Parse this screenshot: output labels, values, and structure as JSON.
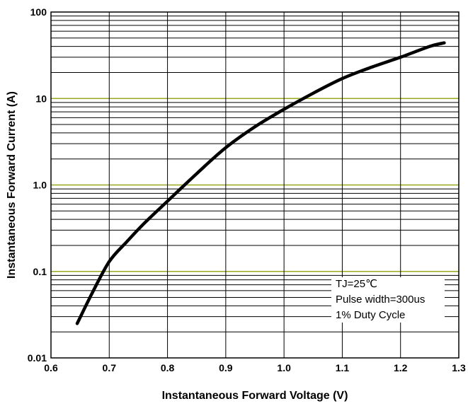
{
  "chart_data": {
    "type": "line",
    "title": "",
    "xlabel": "Instantaneous Forward Voltage (V)",
    "ylabel": "Instantaneous Forward Current (A)",
    "xlim": [
      0.6,
      1.3
    ],
    "ylim": [
      0.01,
      100
    ],
    "y_scale": "log",
    "grid": true,
    "x_ticks": [
      "0.6",
      "0.7",
      "0.8",
      "0.9",
      "1.0",
      "1.1",
      "1.2",
      "1.3"
    ],
    "y_ticks": [
      "0.01",
      "0.1",
      "1.0",
      "10",
      "100"
    ],
    "series": [
      {
        "x": [
          0.645,
          0.67,
          0.7,
          0.73,
          0.76,
          0.8,
          0.85,
          0.9,
          0.95,
          1.0,
          1.05,
          1.1,
          1.15,
          1.2,
          1.25,
          1.275
        ],
        "y": [
          0.025,
          0.055,
          0.13,
          0.22,
          0.36,
          0.65,
          1.35,
          2.7,
          4.7,
          7.5,
          11.5,
          17,
          23,
          30,
          40,
          44
        ]
      }
    ],
    "annotations": [
      "TJ=25℃",
      "Pulse width=300us",
      "1% Duty Cycle"
    ]
  },
  "colors": {
    "curve": "#000000",
    "grid": "#000000",
    "decade_grid": "#9aa820"
  }
}
